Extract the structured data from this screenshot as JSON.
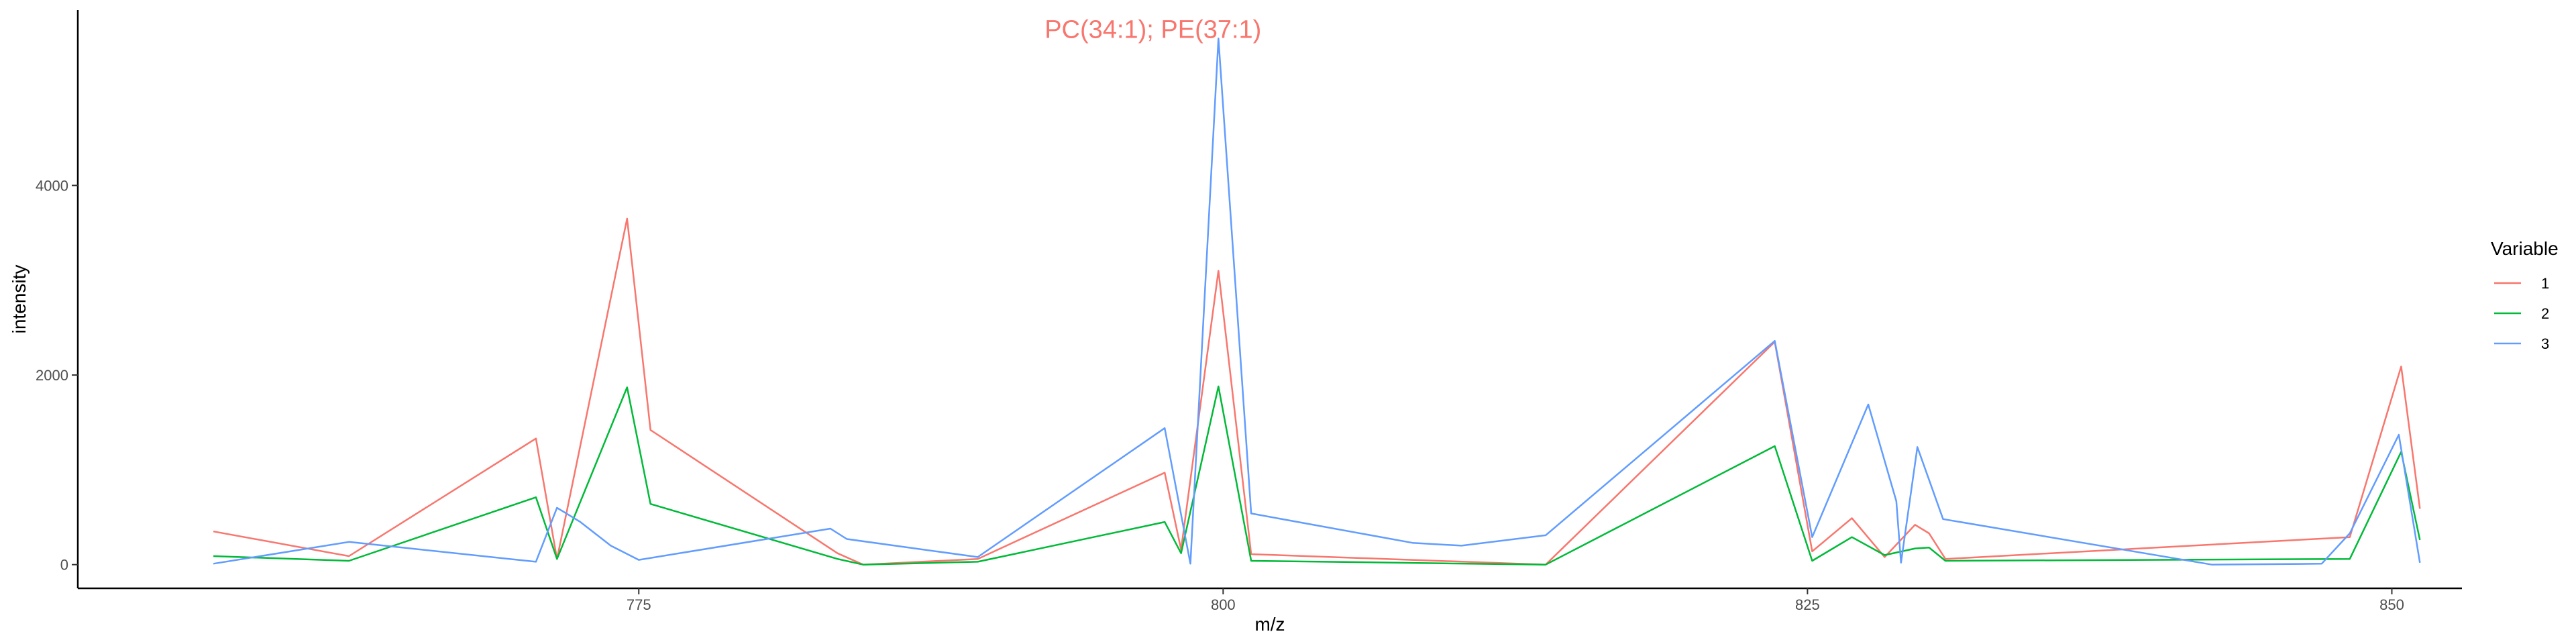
{
  "chart_data": {
    "type": "line",
    "title": "",
    "xlabel": "m/z",
    "ylabel": "intensity",
    "xlim": [
      751,
      853
    ],
    "ylim": [
      -250,
      5850
    ],
    "x_ticks": [
      775,
      800,
      825,
      850
    ],
    "y_ticks": [
      0,
      2000,
      4000
    ],
    "grid": false,
    "legend": {
      "title": "Variable",
      "position": "right"
    },
    "annotation": {
      "text": "PC(34:1); PE(37:1)",
      "x": 797.0,
      "y": 5650,
      "color": "#F8766D"
    },
    "series": [
      {
        "name": "1",
        "color": "#F8766D",
        "points": [
          [
            756.8,
            350
          ],
          [
            762.6,
            90
          ],
          [
            770.6,
            1330
          ],
          [
            771.5,
            60
          ],
          [
            774.5,
            3650
          ],
          [
            775.5,
            1420
          ],
          [
            783.5,
            120
          ],
          [
            784.6,
            0
          ],
          [
            789.5,
            60
          ],
          [
            797.5,
            970
          ],
          [
            798.2,
            160
          ],
          [
            799.8,
            3100
          ],
          [
            801.2,
            110
          ],
          [
            813.8,
            0
          ],
          [
            823.6,
            2350
          ],
          [
            825.2,
            140
          ],
          [
            826.9,
            490
          ],
          [
            828.3,
            80
          ],
          [
            829.6,
            420
          ],
          [
            830.2,
            330
          ],
          [
            830.9,
            60
          ],
          [
            848.2,
            290
          ],
          [
            850.4,
            2090
          ],
          [
            851.2,
            590
          ]
        ]
      },
      {
        "name": "2",
        "color": "#00BA38",
        "points": [
          [
            756.8,
            90
          ],
          [
            762.6,
            40
          ],
          [
            770.6,
            710
          ],
          [
            771.5,
            60
          ],
          [
            774.5,
            1870
          ],
          [
            775.5,
            640
          ],
          [
            783.5,
            60
          ],
          [
            784.6,
            0
          ],
          [
            789.5,
            30
          ],
          [
            797.5,
            450
          ],
          [
            798.2,
            120
          ],
          [
            799.8,
            1880
          ],
          [
            801.2,
            40
          ],
          [
            813.8,
            0
          ],
          [
            823.6,
            1250
          ],
          [
            825.2,
            40
          ],
          [
            826.9,
            290
          ],
          [
            828.3,
            100
          ],
          [
            829.6,
            170
          ],
          [
            830.2,
            180
          ],
          [
            830.9,
            40
          ],
          [
            848.2,
            60
          ],
          [
            850.4,
            1190
          ],
          [
            851.2,
            260
          ]
        ]
      },
      {
        "name": "3",
        "color": "#619CFF",
        "points": [
          [
            756.8,
            10
          ],
          [
            762.6,
            240
          ],
          [
            770.6,
            30
          ],
          [
            771.5,
            600
          ],
          [
            772.5,
            450
          ],
          [
            773.8,
            200
          ],
          [
            775.0,
            50
          ],
          [
            783.2,
            380
          ],
          [
            783.9,
            270
          ],
          [
            789.5,
            80
          ],
          [
            797.5,
            1440
          ],
          [
            798.6,
            10
          ],
          [
            799.8,
            5550
          ],
          [
            801.2,
            540
          ],
          [
            808.1,
            230
          ],
          [
            810.2,
            200
          ],
          [
            813.8,
            310
          ],
          [
            823.6,
            2360
          ],
          [
            825.2,
            290
          ],
          [
            827.6,
            1690
          ],
          [
            828.8,
            670
          ],
          [
            829.0,
            20
          ],
          [
            829.7,
            1240
          ],
          [
            830.8,
            480
          ],
          [
            842.3,
            0
          ],
          [
            847.0,
            10
          ],
          [
            848.2,
            330
          ],
          [
            850.3,
            1370
          ],
          [
            851.2,
            20
          ]
        ]
      }
    ]
  }
}
